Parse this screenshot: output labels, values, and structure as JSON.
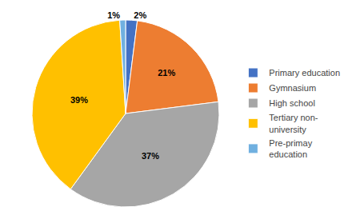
{
  "chart_data": {
    "type": "pie",
    "categories": [
      "Primary education",
      "Gymnasium",
      "High school",
      "Tertiary non-\nuniversity",
      "Pre-primay\neducation"
    ],
    "values": [
      2,
      21,
      37,
      39,
      1
    ],
    "value_labels": [
      "2%",
      "21%",
      "37%",
      "39%",
      "1%"
    ],
    "colors": [
      "#4472c4",
      "#ed7d31",
      "#a6a6a6",
      "#ffc000",
      "#70b0e0"
    ],
    "data_labels": true,
    "legend": "right"
  }
}
